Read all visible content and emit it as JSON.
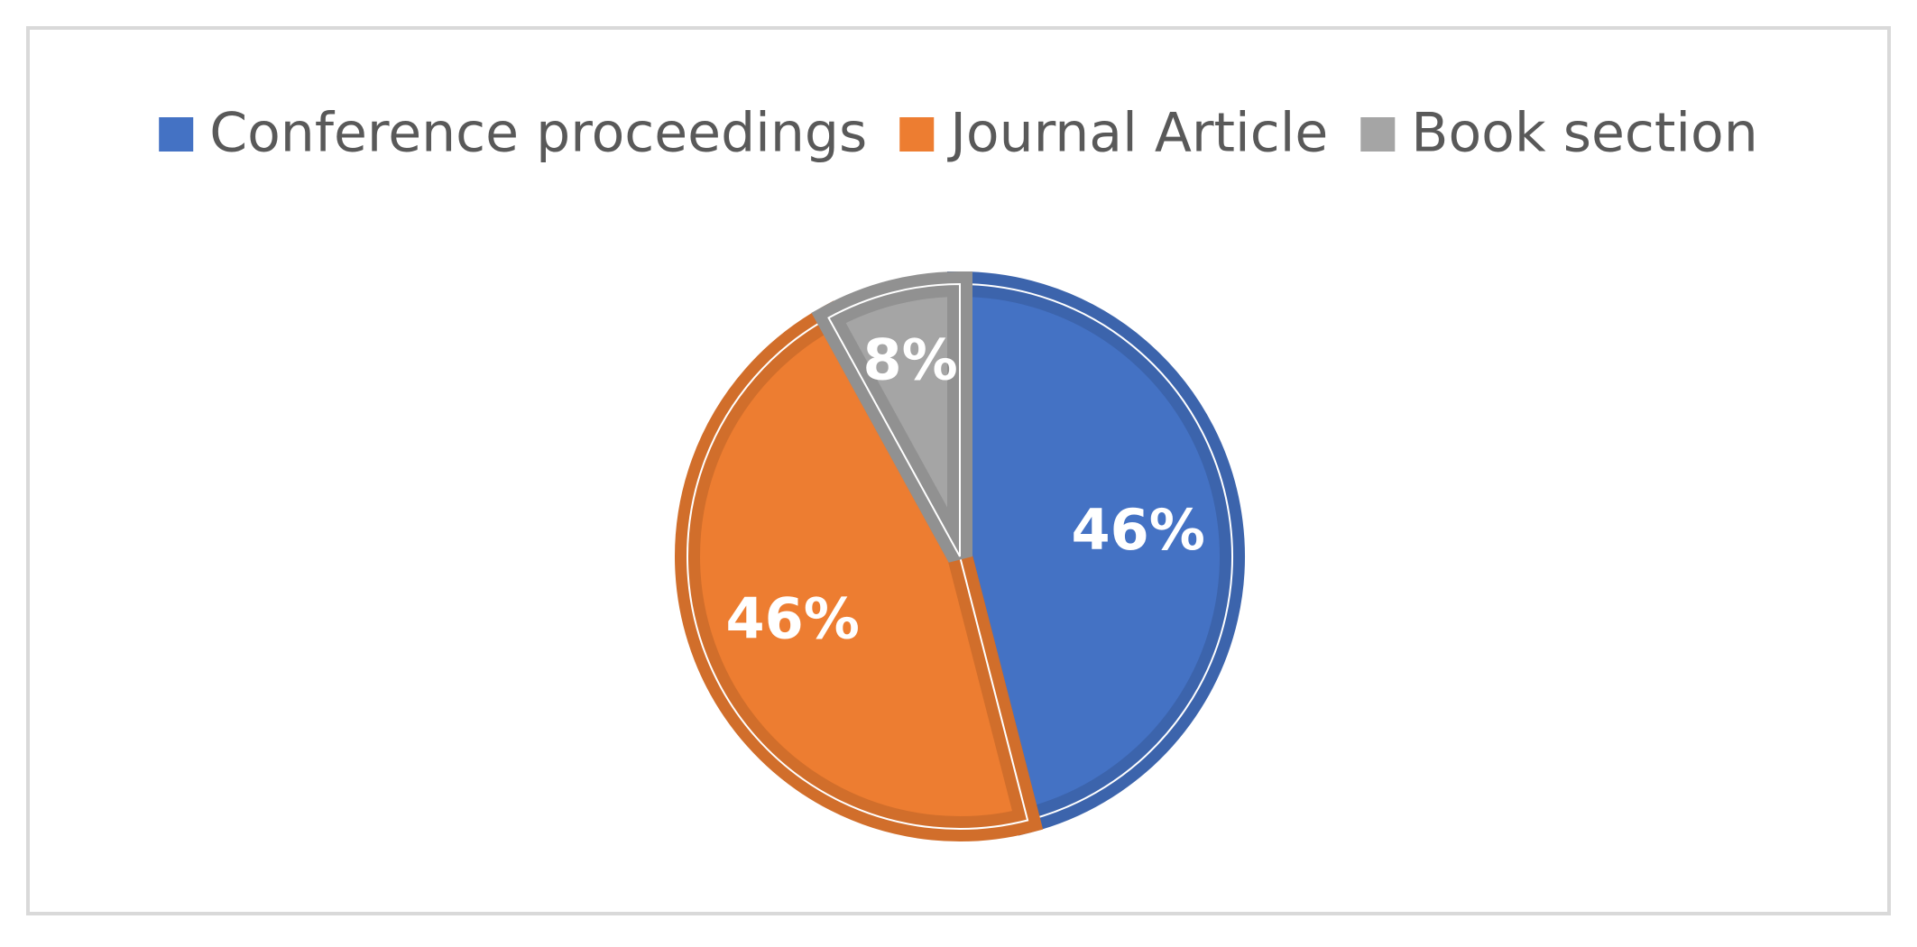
{
  "chart_data": {
    "type": "pie",
    "categories": [
      "Conference proceedings",
      "Journal Article",
      "Book section"
    ],
    "values": [
      46,
      46,
      8
    ],
    "value_labels": [
      "46%",
      "46%",
      "8%"
    ],
    "colors": [
      "#4472c4",
      "#ed7d31",
      "#a5a5a5"
    ],
    "legend": "top"
  }
}
